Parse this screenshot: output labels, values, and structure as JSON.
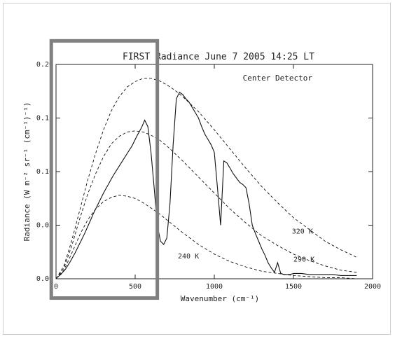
{
  "chart_data": {
    "type": "line",
    "title": "FIRST Radiance June 7 2005 14:25 LT",
    "xlabel": "Wavenumber (cm⁻¹)",
    "ylabel": "Radiance (W m⁻² sr⁻¹ (cm⁻¹)⁻¹)",
    "xlim": [
      0,
      2000
    ],
    "ylim": [
      0,
      0.2
    ],
    "x_ticks": [
      "0",
      "500",
      "1000",
      "1500",
      "2000"
    ],
    "y_ticks": [
      "0.00",
      "0.05",
      "0.10",
      "0.15",
      "0.20"
    ],
    "legend": "none",
    "grid": false,
    "annotations": {
      "detector": "Center Detector",
      "t320": "320 K",
      "t290": "290 K",
      "t240": "240 K"
    },
    "highlight_box": {
      "x_range": [
        -30,
        640
      ],
      "y_range": [
        -0.018,
        0.222
      ],
      "color": "#808080"
    },
    "series": [
      {
        "style": "dashed",
        "x": [
          0,
          50,
          100,
          150,
          200,
          250,
          300,
          350,
          400,
          450,
          500,
          550,
          600,
          650,
          700,
          750,
          800,
          900,
          1000,
          1100,
          1200,
          1300,
          1400,
          1500,
          1600,
          1700,
          1800,
          1900
        ],
        "y": [
          0,
          0.012,
          0.036,
          0.064,
          0.092,
          0.117,
          0.139,
          0.157,
          0.17,
          0.179,
          0.184,
          0.187,
          0.187,
          0.185,
          0.181,
          0.176,
          0.17,
          0.156,
          0.139,
          0.121,
          0.103,
          0.086,
          0.071,
          0.057,
          0.046,
          0.035,
          0.027,
          0.02
        ]
      },
      {
        "style": "dashed",
        "x": [
          0,
          50,
          100,
          150,
          200,
          250,
          300,
          350,
          400,
          450,
          500,
          550,
          600,
          650,
          700,
          750,
          800,
          900,
          1000,
          1100,
          1200,
          1300,
          1400,
          1500,
          1600,
          1700,
          1800,
          1900
        ],
        "y": [
          0,
          0.01,
          0.031,
          0.056,
          0.079,
          0.098,
          0.114,
          0.126,
          0.133,
          0.137,
          0.138,
          0.137,
          0.134,
          0.13,
          0.124,
          0.117,
          0.11,
          0.095,
          0.08,
          0.065,
          0.052,
          0.04,
          0.031,
          0.023,
          0.017,
          0.012,
          0.008,
          0.006
        ]
      },
      {
        "style": "dashed",
        "x": [
          0,
          50,
          100,
          150,
          200,
          250,
          300,
          350,
          400,
          450,
          500,
          550,
          600,
          650,
          700,
          750,
          800,
          900,
          1000,
          1100,
          1200,
          1300,
          1400,
          1500,
          1600,
          1700,
          1800,
          1900
        ],
        "y": [
          0,
          0.008,
          0.024,
          0.041,
          0.055,
          0.065,
          0.072,
          0.076,
          0.078,
          0.077,
          0.075,
          0.071,
          0.066,
          0.061,
          0.055,
          0.049,
          0.043,
          0.032,
          0.023,
          0.016,
          0.011,
          0.007,
          0.005,
          0.003,
          0.002,
          0.001,
          0.001,
          0.0
        ]
      },
      {
        "style": "solid",
        "x": [
          5,
          30,
          60,
          90,
          120,
          150,
          180,
          210,
          240,
          270,
          300,
          330,
          360,
          390,
          420,
          450,
          480,
          510,
          540,
          560,
          580,
          600,
          620,
          640,
          660,
          680,
          700,
          720,
          740,
          760,
          780,
          800,
          820,
          840,
          860,
          880,
          900,
          920,
          940,
          960,
          980,
          1000,
          1020,
          1040,
          1060,
          1080,
          1100,
          1120,
          1140,
          1160,
          1180,
          1200,
          1220,
          1240,
          1260,
          1280,
          1300,
          1320,
          1340,
          1360,
          1380,
          1400,
          1420,
          1440,
          1460,
          1480,
          1500,
          1550,
          1600,
          1650,
          1700,
          1750,
          1800,
          1850,
          1900
        ],
        "y": [
          0.001,
          0.004,
          0.009,
          0.016,
          0.024,
          0.033,
          0.042,
          0.052,
          0.062,
          0.071,
          0.08,
          0.088,
          0.096,
          0.103,
          0.11,
          0.117,
          0.124,
          0.133,
          0.141,
          0.148,
          0.142,
          0.118,
          0.085,
          0.05,
          0.035,
          0.032,
          0.038,
          0.07,
          0.125,
          0.168,
          0.174,
          0.172,
          0.168,
          0.165,
          0.16,
          0.155,
          0.15,
          0.142,
          0.135,
          0.13,
          0.125,
          0.118,
          0.085,
          0.05,
          0.11,
          0.108,
          0.103,
          0.098,
          0.094,
          0.09,
          0.088,
          0.085,
          0.07,
          0.05,
          0.042,
          0.035,
          0.028,
          0.022,
          0.015,
          0.01,
          0.006,
          0.015,
          0.005,
          0.004,
          0.004,
          0.004,
          0.005,
          0.005,
          0.004,
          0.004,
          0.004,
          0.004,
          0.003,
          0.003,
          0.003
        ]
      }
    ]
  }
}
